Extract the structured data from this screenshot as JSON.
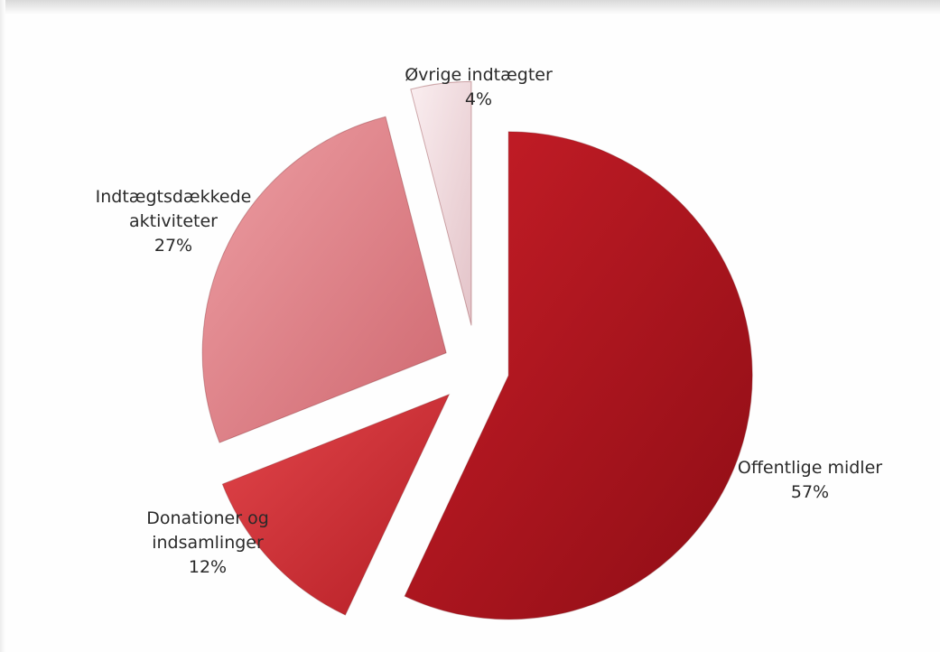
{
  "chart_data": {
    "type": "pie",
    "exploded": true,
    "slices": [
      {
        "label": "Offentlige midler",
        "value": 57,
        "display": "57%",
        "color": "#b3141f"
      },
      {
        "label": "Donationer og indsamlinger",
        "label_lines": [
          "Donationer og",
          "indsamlinger"
        ],
        "value": 12,
        "display": "12%",
        "color": "#d43238"
      },
      {
        "label": "Indtægtsdækkede aktiviteter",
        "label_lines": [
          "Indtægtsdækkede",
          "aktiviteter"
        ],
        "value": 27,
        "display": "27%",
        "color": "#e0868c"
      },
      {
        "label": "Øvrige indtægter",
        "value": 4,
        "display": "4%",
        "color": "#f2d9dc"
      }
    ]
  }
}
